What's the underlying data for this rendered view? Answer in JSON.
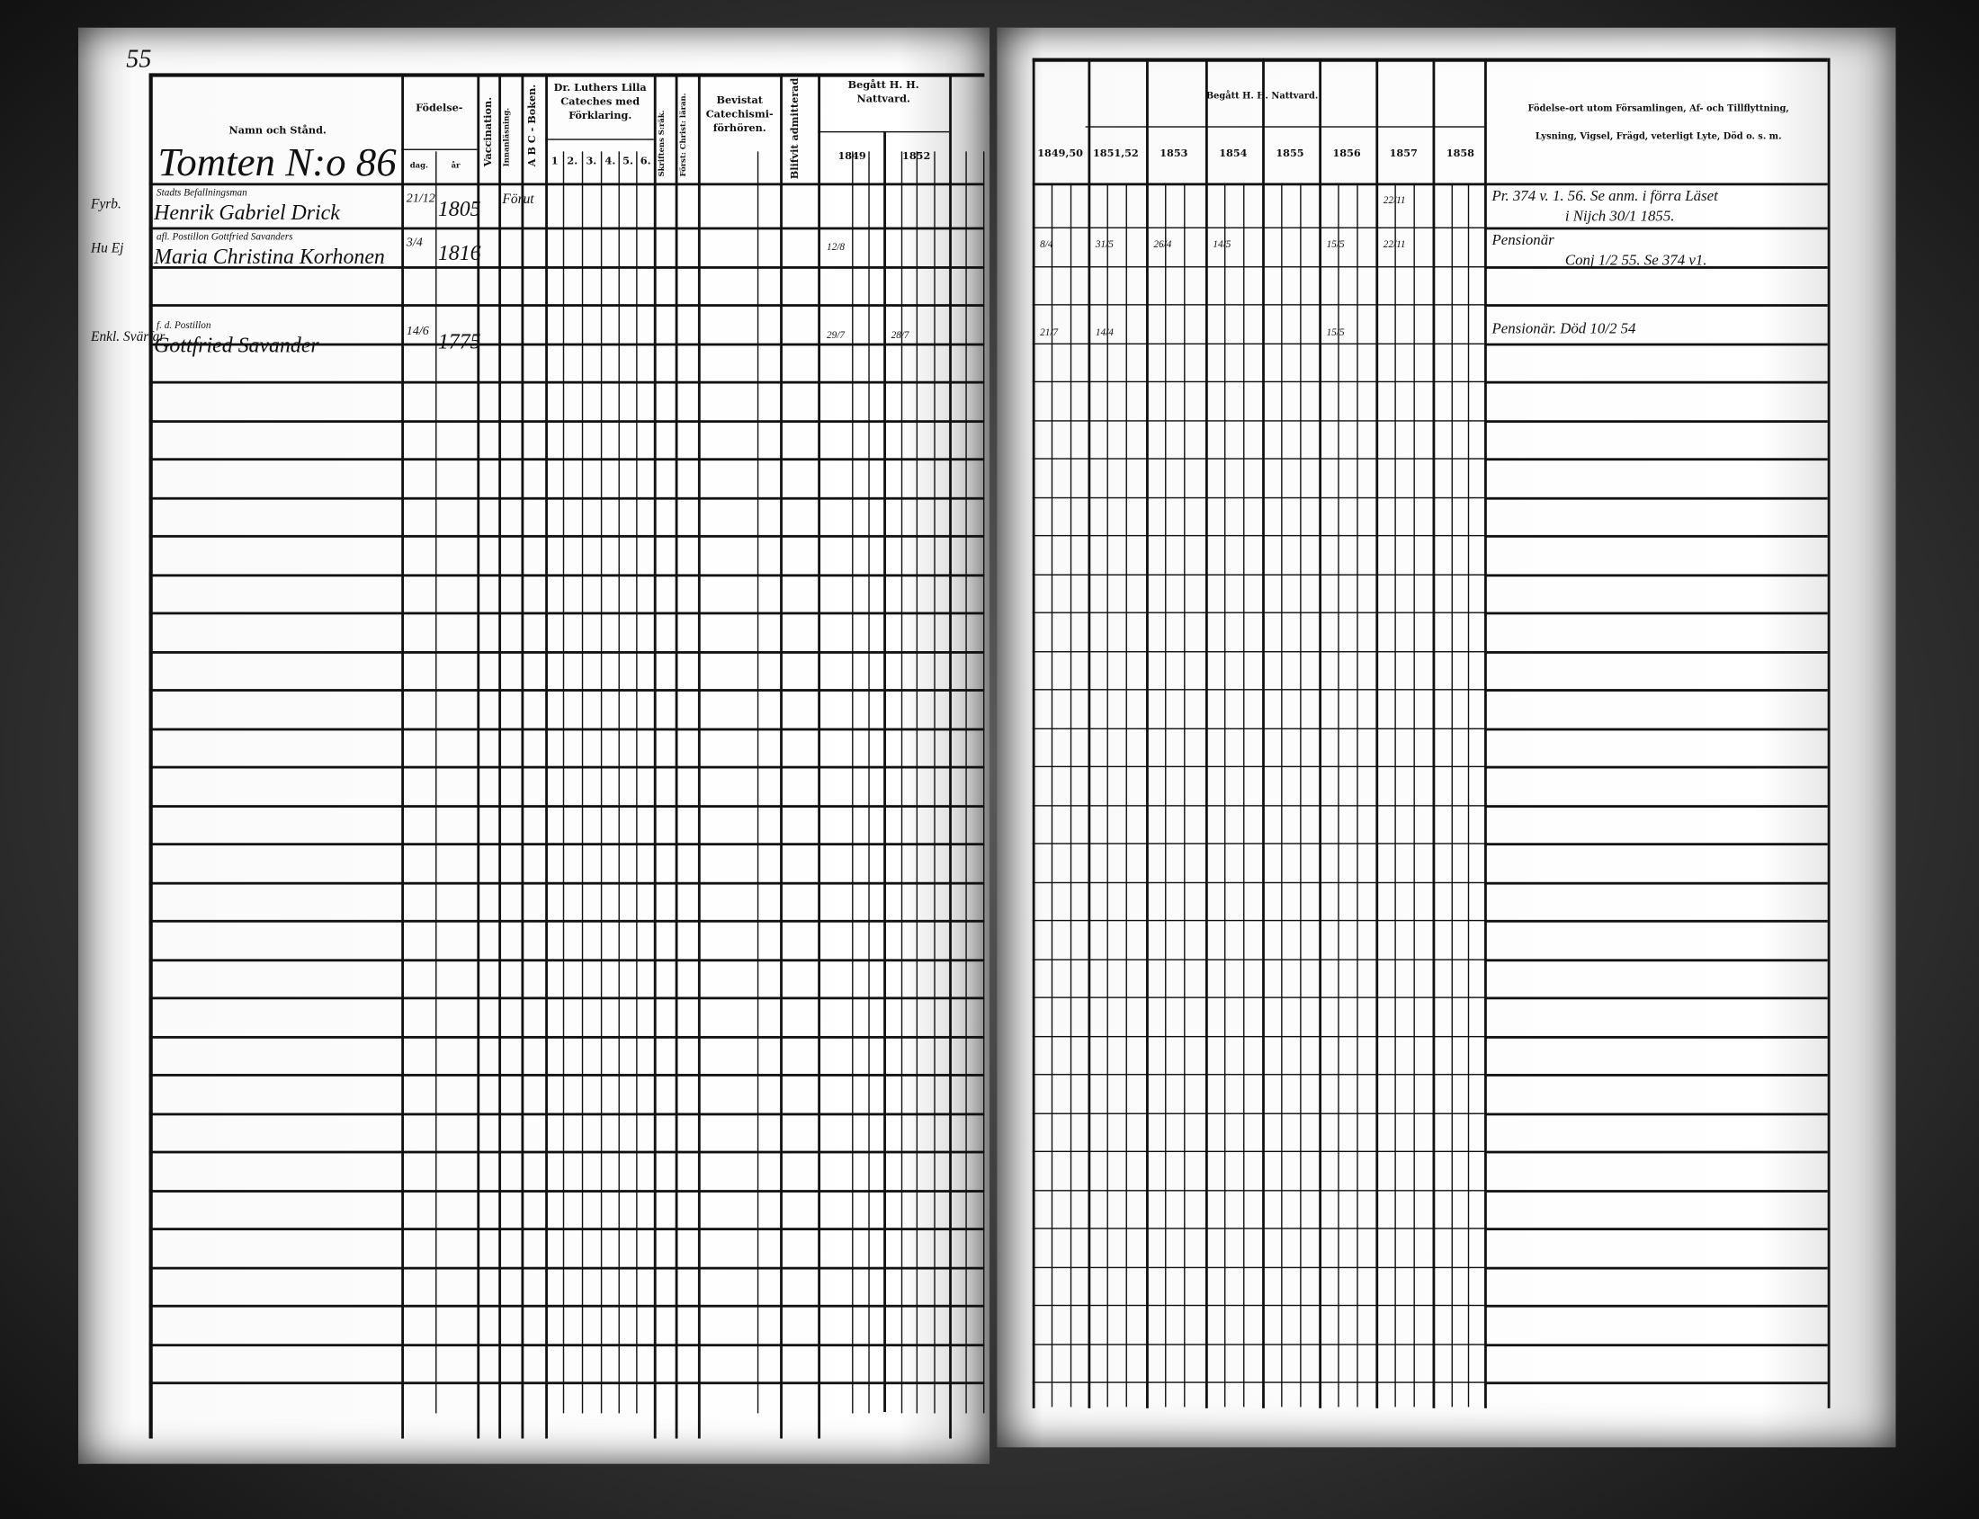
{
  "page_number": "55",
  "left_headers": {
    "name": "Namn och Stånd.",
    "birth": "Födelse-",
    "birth_day": "dag.",
    "birth_year": "år",
    "vaccination": "Vaccination.",
    "reading": "Innanläsning.",
    "abc": "A B C - Boken.",
    "luther": "Dr. Luthers Lilla Cateches med Förklaring.",
    "luther_cols": [
      "1",
      "2.",
      "3.",
      "4.",
      "5.",
      "6."
    ],
    "scripture": "Skriftens S:räk.",
    "christ": "Först: Christ: läran.",
    "catechism": "Bevistat Catechismi-förhören.",
    "admitted": "Blifvit admitterad",
    "communion": "Begått H. H. Nattvard.",
    "communion_years": [
      "1849",
      "1852"
    ]
  },
  "right_headers": {
    "communion": "Begått H. H. Nattvard.",
    "years": [
      "1849,50",
      "1851,52",
      "1853",
      "1854",
      "1855",
      "1856",
      "1857",
      "1858"
    ],
    "remarks_line1": "Födelse-ort utom Församlingen, Af- och Tillflyttning,",
    "remarks_line2": "Lysning, Vigsel, Frägd, veterligt Lyte, Död o. s. m."
  },
  "household_title": "Tomten N:o 86",
  "entries": [
    {
      "margin": "Fyrb.",
      "occupation": "Stadts Befallningsman",
      "name": "Henrik Gabriel Drick",
      "day": "21/12",
      "year": "1805",
      "vacc": "Förut",
      "left_communion": [
        "",
        ""
      ],
      "right_communion": [
        "",
        "",
        "",
        "",
        "",
        "",
        "22/11",
        ""
      ],
      "remark1": "Pr. 374 v. 1. 56. Se anm. i förra Läset",
      "remark2": "i Nijch 30/1 1855."
    },
    {
      "margin": "Hu Ej",
      "occupation": "afl. Postillon Gottfried Savanders",
      "name": "Maria Christina Korhonen",
      "day": "3/4",
      "year": "1816",
      "vacc": "",
      "left_communion": [
        "12/8",
        ""
      ],
      "right_communion": [
        "8/4",
        "31/5",
        "26/4",
        "14/5",
        "",
        "15/5",
        "22/11",
        ""
      ],
      "remark1": "Pensionär",
      "remark2": "Conj 1/2 55. Se 374 v1."
    },
    {
      "margin": "Enkl. Svärfar",
      "occupation": "f. d. Postillon",
      "name": "Gottfried Savander",
      "day": "14/6",
      "year": "1775",
      "vacc": "",
      "left_communion": [
        "29/7",
        "28/7"
      ],
      "right_communion": [
        "21/7",
        "14/4",
        "",
        "",
        "",
        "15/5",
        "",
        ""
      ],
      "remark1": "Pensionär. Död 10/2 54",
      "remark2": ""
    }
  ]
}
